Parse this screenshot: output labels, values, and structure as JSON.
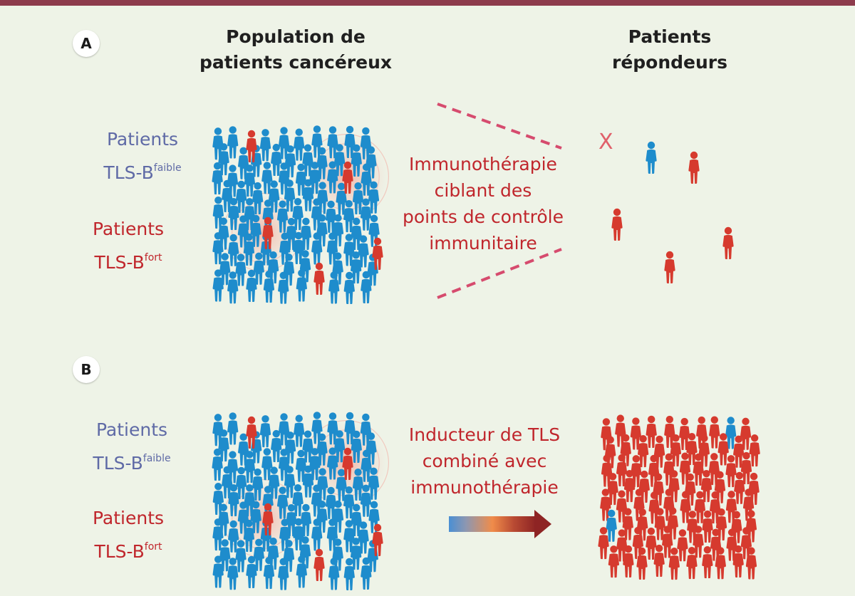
{
  "panel_a": {
    "badge": "A",
    "title_population": [
      "Population de",
      "patients cancéreux"
    ],
    "title_responders": [
      "Patients",
      "répondeurs"
    ],
    "legend_low": {
      "label": "Patients",
      "line2": "TLS-B",
      "sup": "faible"
    },
    "legend_high": {
      "label": "Patients",
      "line2": "TLS-B",
      "sup": "fort"
    },
    "treatment_lines": [
      "Immunothérapie",
      "ciblant des",
      "points de contrôle",
      "immunitaire"
    ],
    "non_responder_mark": "X"
  },
  "panel_b": {
    "badge": "B",
    "legend_low": {
      "label": "Patients",
      "line2": "TLS-B",
      "sup": "faible"
    },
    "legend_high": {
      "label": "Patients",
      "line2": "TLS-B",
      "sup": "fort"
    },
    "treatment_lines": [
      "Inducteur de TLS",
      "combiné avec",
      "immunothérapie"
    ]
  },
  "colors": {
    "background": "#eef3e7",
    "top_bar": "#8d3b4c",
    "tls_low_person": "#1e8ccc",
    "tls_high_person": "#d63a2e",
    "text_blue": "#5f6aa6",
    "text_red": "#c0262c",
    "dashed_line": "#d64b6e",
    "arrow_gradient": [
      "#4a8fd4",
      "#f08c4a",
      "#8e2424"
    ]
  },
  "icons": [
    "person-icon",
    "dashed-funnel-lines",
    "gradient-arrow"
  ]
}
